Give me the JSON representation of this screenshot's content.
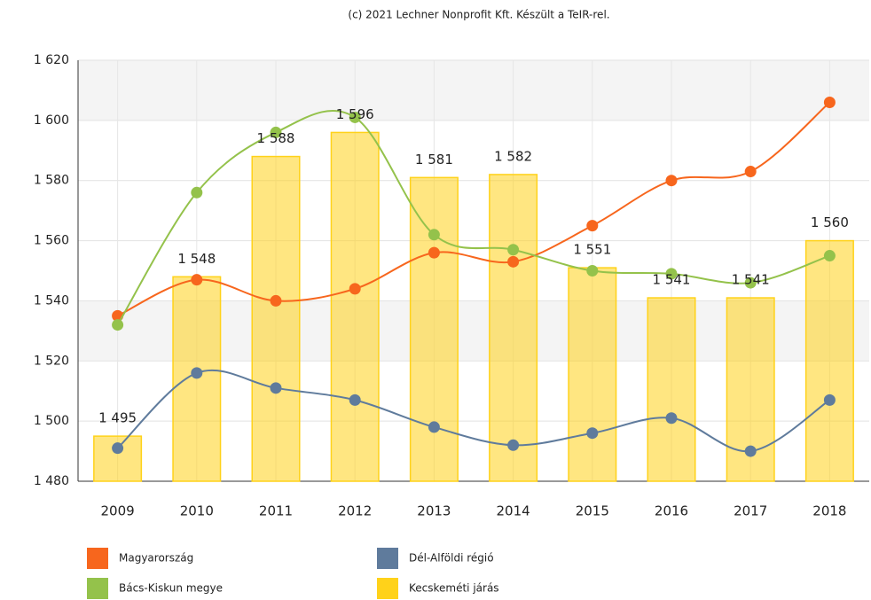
{
  "chart_data": {
    "type": "combo",
    "subtitle": "(c) 2021 Lechner Nonprofit Kft. Készült a TeIR-rel.",
    "categories": [
      "2009",
      "2010",
      "2011",
      "2012",
      "2013",
      "2014",
      "2015",
      "2016",
      "2017",
      "2018"
    ],
    "ylim": [
      1480,
      1620
    ],
    "yticks": [
      {
        "value": 1480,
        "label": "1 480"
      },
      {
        "value": 1500,
        "label": "1 500"
      },
      {
        "value": 1520,
        "label": "1 520"
      },
      {
        "value": 1540,
        "label": "1 540"
      },
      {
        "value": 1560,
        "label": "1 560"
      },
      {
        "value": 1580,
        "label": "1 580"
      },
      {
        "value": 1600,
        "label": "1 600"
      },
      {
        "value": 1620,
        "label": "1 620"
      }
    ],
    "grid": true,
    "series": [
      {
        "name": "Magyarország",
        "type": "line",
        "color": "#f7661d",
        "values": [
          1535,
          1547,
          1540,
          1544,
          1556,
          1553,
          1565,
          1580,
          1583,
          1606
        ]
      },
      {
        "name": "Dél-Alföldi régió",
        "type": "line",
        "color": "#5f7b9c",
        "values": [
          1491,
          1516,
          1511,
          1507,
          1498,
          1492,
          1496,
          1501,
          1490,
          1507
        ]
      },
      {
        "name": "Bács-Kiskun megye",
        "type": "line",
        "color": "#94c24b",
        "values": [
          1532,
          1576,
          1596,
          1601,
          1562,
          1557,
          1550,
          1549,
          1546,
          1555
        ]
      },
      {
        "name": "Kecskeméti járás",
        "type": "bar",
        "color": "#ffd21a",
        "values": [
          1495,
          1548,
          1588,
          1596,
          1581,
          1582,
          1551,
          1541,
          1541,
          1560
        ],
        "value_labels": [
          "1 495",
          "1 548",
          "1 588",
          "1 596",
          "1 581",
          "1 582",
          "1 551",
          "1 541",
          "1 541",
          "1 560"
        ]
      }
    ]
  }
}
